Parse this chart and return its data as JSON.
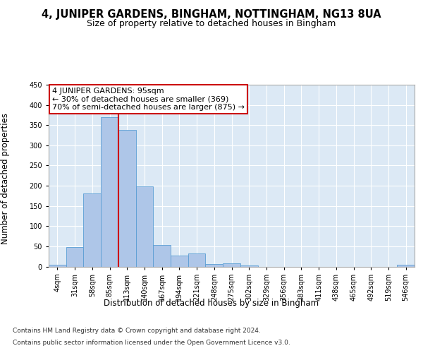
{
  "title": "4, JUNIPER GARDENS, BINGHAM, NOTTINGHAM, NG13 8UA",
  "subtitle": "Size of property relative to detached houses in Bingham",
  "xlabel": "Distribution of detached houses by size in Bingham",
  "ylabel": "Number of detached properties",
  "footer_line1": "Contains HM Land Registry data © Crown copyright and database right 2024.",
  "footer_line2": "Contains public sector information licensed under the Open Government Licence v3.0.",
  "bin_labels": [
    "4sqm",
    "31sqm",
    "58sqm",
    "85sqm",
    "113sqm",
    "140sqm",
    "167sqm",
    "194sqm",
    "221sqm",
    "248sqm",
    "275sqm",
    "302sqm",
    "329sqm",
    "356sqm",
    "383sqm",
    "411sqm",
    "438sqm",
    "465sqm",
    "492sqm",
    "519sqm",
    "546sqm"
  ],
  "bar_values": [
    5,
    48,
    181,
    369,
    338,
    199,
    54,
    27,
    33,
    6,
    7,
    2,
    0,
    0,
    0,
    0,
    0,
    0,
    0,
    0,
    5
  ],
  "bar_color": "#aec6e8",
  "bar_edge_color": "#5a9ed4",
  "vline_color": "#cc0000",
  "annotation_line1": "4 JUNIPER GARDENS: 95sqm",
  "annotation_line2": "← 30% of detached houses are smaller (369)",
  "annotation_line3": "70% of semi-detached houses are larger (875) →",
  "annotation_box_color": "#ffffff",
  "annotation_box_edge": "#cc0000",
  "ylim": [
    0,
    450
  ],
  "yticks": [
    0,
    50,
    100,
    150,
    200,
    250,
    300,
    350,
    400,
    450
  ],
  "bg_color": "#dce9f5",
  "fig_bg_color": "#ffffff",
  "grid_color": "#ffffff",
  "title_fontsize": 10.5,
  "subtitle_fontsize": 9,
  "axis_label_fontsize": 8.5,
  "tick_fontsize": 7,
  "annotation_fontsize": 8,
  "footer_fontsize": 6.5
}
